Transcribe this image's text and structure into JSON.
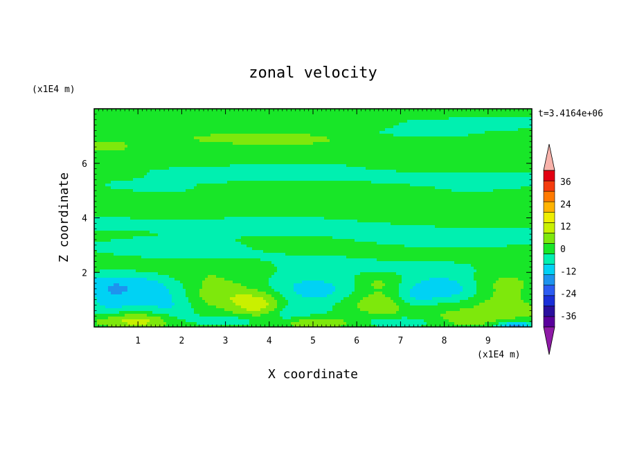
{
  "chart_data": {
    "type": "heatmap",
    "title": "zonal velocity",
    "xlabel": "X coordinate",
    "ylabel": "Z coordinate",
    "x_unit": "(x1E4 m)",
    "y_unit": "(x1E4 m)",
    "time_label": "t=3.4164e+06",
    "xlim": [
      0,
      10
    ],
    "ylim": [
      0,
      8
    ],
    "x_ticks": [
      "1",
      "2",
      "3",
      "4",
      "5",
      "6",
      "7",
      "8",
      "9"
    ],
    "y_ticks": [
      "2",
      "4",
      "6"
    ],
    "colorbar": {
      "levels": [
        -42,
        -36,
        -30,
        -24,
        -18,
        -12,
        -6,
        0,
        6,
        12,
        18,
        24,
        30,
        36,
        42
      ],
      "tick_labels": [
        "36",
        "24",
        "12",
        "0",
        "-12",
        "-24",
        "-36"
      ],
      "colors": [
        "#5a009c",
        "#2a0f9e",
        "#1a2fd8",
        "#2c5cf2",
        "#1e93ee",
        "#00d2f4",
        "#00f0b0",
        "#18e628",
        "#7ee80c",
        "#c9f000",
        "#eeee00",
        "#ffb300",
        "#ff7a00",
        "#f43c0e",
        "#e20012"
      ],
      "under_color": "#8e1aa6",
      "over_color": "#f8b2aa"
    },
    "field": {
      "background": 2,
      "features": [
        {
          "x": 1.1,
          "z": 1.3,
          "sx": 0.75,
          "sz": 0.55,
          "v": -11
        },
        {
          "x": 0.3,
          "z": 1.1,
          "sx": 0.35,
          "sz": 0.5,
          "v": -7
        },
        {
          "x": 1.8,
          "z": 0.7,
          "sx": 0.35,
          "sz": 0.45,
          "v": -5
        },
        {
          "x": 2.9,
          "z": 1.35,
          "sx": 0.9,
          "sz": 0.4,
          "v": 11,
          "tilt": -0.33
        },
        {
          "x": 3.8,
          "z": 0.75,
          "sx": 0.4,
          "sz": 0.3,
          "v": 9
        },
        {
          "x": 5.0,
          "z": 1.1,
          "sx": 0.65,
          "sz": 0.55,
          "v": -10
        },
        {
          "x": 4.4,
          "z": 0.5,
          "sx": 0.35,
          "sz": 0.35,
          "v": -6
        },
        {
          "x": 6.6,
          "z": 1.15,
          "sx": 0.55,
          "sz": 0.45,
          "v": 8
        },
        {
          "x": 6.5,
          "z": 1.6,
          "sx": 0.3,
          "sz": 0.2,
          "v": 4
        },
        {
          "x": 8.0,
          "z": 1.55,
          "sx": 0.75,
          "sz": 0.4,
          "v": -10
        },
        {
          "x": 7.3,
          "z": 1.0,
          "sx": 0.35,
          "sz": 0.3,
          "v": -7
        },
        {
          "x": 9.3,
          "z": 1.25,
          "sx": 0.55,
          "sz": 0.5,
          "v": 10
        },
        {
          "x": 1.0,
          "z": 0.25,
          "sx": 0.6,
          "sz": 0.2,
          "v": 12
        },
        {
          "x": 5.0,
          "z": 0.15,
          "sx": 0.7,
          "sz": 0.18,
          "v": 13
        },
        {
          "x": 3.0,
          "z": 0.22,
          "sx": 0.8,
          "sz": 0.15,
          "v": -7
        },
        {
          "x": 7.0,
          "z": 0.2,
          "sx": 0.7,
          "sz": 0.15,
          "v": -6
        },
        {
          "x": 8.5,
          "z": 0.25,
          "sx": 0.6,
          "sz": 0.2,
          "v": 6
        },
        {
          "x": 9.6,
          "z": 0.05,
          "sx": 0.3,
          "sz": 0.12,
          "v": -16
        },
        {
          "x": 6.0,
          "z": 2.15,
          "sx": 2.5,
          "sz": 0.25,
          "v": -3
        },
        {
          "x": 4.0,
          "z": 2.6,
          "sx": 3.0,
          "sz": 0.2,
          "v": -2
        },
        {
          "x": 2.0,
          "z": 2.95,
          "sx": 1.6,
          "sz": 0.25,
          "v": -4
        },
        {
          "x": 7.5,
          "z": 3.1,
          "sx": 1.8,
          "sz": 0.25,
          "v": -4
        },
        {
          "x": 3.0,
          "z": 4.25,
          "sx": 2.5,
          "sz": 0.3,
          "v": -3
        },
        {
          "x": 8.5,
          "z": 4.9,
          "sx": 1.6,
          "sz": 0.3,
          "v": -3
        },
        {
          "x": 5.0,
          "z": 5.55,
          "sx": 3.0,
          "sz": 0.25,
          "v": -3
        },
        {
          "x": 2.2,
          "z": 6.55,
          "sx": 1.6,
          "sz": 0.2,
          "v": -4
        },
        {
          "x": 7.5,
          "z": 6.3,
          "sx": 2.2,
          "sz": 0.2,
          "v": -4
        },
        {
          "x": 8.0,
          "z": 5.8,
          "sx": 1.5,
          "sz": 0.12,
          "v": 6
        },
        {
          "x": 4.5,
          "z": 6.1,
          "sx": 2.0,
          "sz": 0.12,
          "v": 4
        },
        {
          "x": 3.8,
          "z": 6.95,
          "sx": 1.6,
          "sz": 0.2,
          "v": 9
        },
        {
          "x": 1.3,
          "z": 7.3,
          "sx": 0.8,
          "sz": 0.15,
          "v": 5
        },
        {
          "x": 6.3,
          "z": 7.1,
          "sx": 1.8,
          "sz": 0.18,
          "v": -4
        },
        {
          "x": 0.3,
          "z": 6.6,
          "sx": 0.4,
          "sz": 0.15,
          "v": 6
        },
        {
          "x": 5.0,
          "z": 7.8,
          "sx": 4.0,
          "sz": 0.18,
          "v": 4
        },
        {
          "x": 8.8,
          "z": 7.45,
          "sx": 1.2,
          "sz": 0.15,
          "v": -4
        },
        {
          "x": 5.5,
          "z": 4.7,
          "sx": 1.8,
          "sz": 0.25,
          "v": 2
        }
      ]
    }
  }
}
